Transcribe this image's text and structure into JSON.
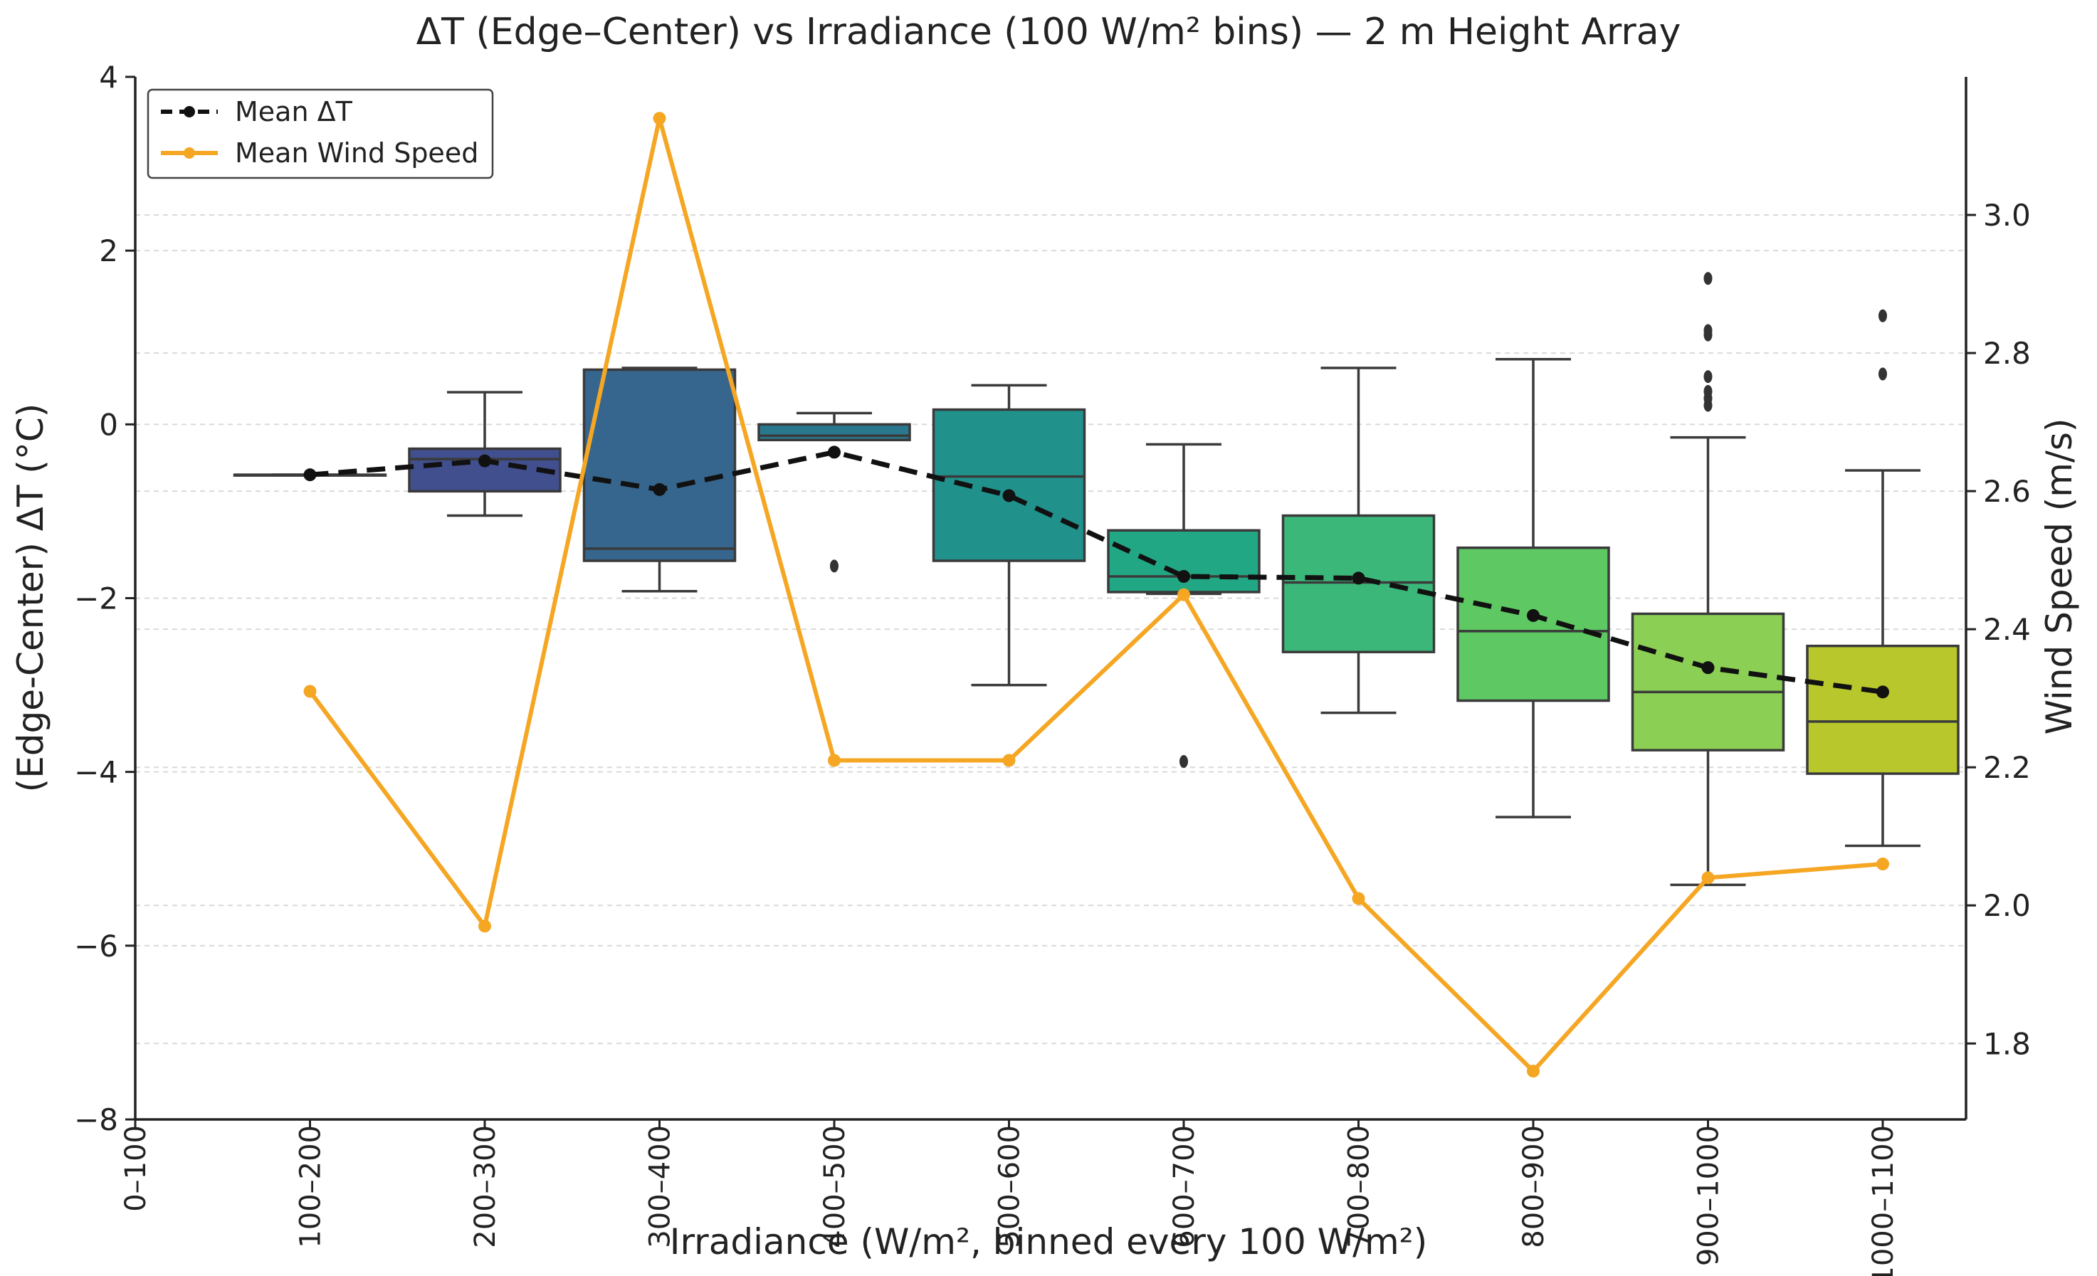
{
  "chart_data": {
    "type": "box",
    "title": "ΔT (Edge–Center) vs Irradiance (100 W/m² bins) — 2 m Height Array",
    "xlabel": "Irradiance (W/m², binned every 100 W/m²)",
    "ylabel": "(Edge-Center) ΔT (°C)",
    "y2label": "Wind Speed (m/s)",
    "ylim": [
      -8,
      4
    ],
    "y2lim": [
      1.69,
      3.2
    ],
    "yticks": [
      -8,
      -6,
      -4,
      -2,
      0,
      2,
      4
    ],
    "yticklabels": [
      "−8",
      "−6",
      "−4",
      "−2",
      "0",
      "2",
      "4"
    ],
    "y2ticks": [
      1.8,
      2.0,
      2.2,
      2.4,
      2.6,
      2.8,
      3.0
    ],
    "y2ticklabels": [
      "1.8",
      "2.0",
      "2.2",
      "2.4",
      "2.6",
      "2.8",
      "3.0"
    ],
    "categories": [
      "0–100",
      "100–200",
      "200–300",
      "300–400",
      "400–500",
      "500–600",
      "600–700",
      "700–800",
      "800–900",
      "900–1000",
      "1000–1100"
    ],
    "grid": "horizontal dotted",
    "legend_position": "top-left",
    "legend": [
      {
        "label": "Mean ΔT",
        "color": "#111111",
        "style": "dashed-line-with-dot"
      },
      {
        "label": "Mean Wind Speed",
        "color": "#f5a623",
        "style": "solid-line-with-dot"
      }
    ],
    "boxes": [
      null,
      {
        "q1": -0.58,
        "median": -0.58,
        "q3": -0.58,
        "whislo": -0.58,
        "whishi": -0.58,
        "fliers": [],
        "color": "#472c7a"
      },
      {
        "q1": -0.77,
        "median": -0.4,
        "q3": -0.28,
        "whislo": -1.05,
        "whishi": 0.37,
        "fliers": [],
        "color": "#424f8e"
      },
      {
        "q1": -1.57,
        "median": -1.43,
        "q3": 0.63,
        "whislo": -1.92,
        "whishi": 0.65,
        "fliers": [],
        "color": "#36658d"
      },
      {
        "q1": -0.18,
        "median": -0.13,
        "q3": 0.0,
        "whislo": -0.18,
        "whishi": 0.13,
        "fliers": [
          -1.63
        ],
        "color": "#2a788e"
      },
      {
        "q1": -1.57,
        "median": -0.6,
        "q3": 0.17,
        "whislo": -3.0,
        "whishi": 0.45,
        "fliers": [],
        "color": "#21918c"
      },
      {
        "q1": -1.93,
        "median": -1.75,
        "q3": -1.22,
        "whislo": -1.95,
        "whishi": -0.23,
        "fliers": [
          -3.88
        ],
        "color": "#22a784"
      },
      {
        "q1": -2.62,
        "median": -1.82,
        "q3": -1.05,
        "whislo": -3.32,
        "whishi": 0.65,
        "fliers": [],
        "color": "#3bb77a"
      },
      {
        "q1": -3.18,
        "median": -2.38,
        "q3": -1.42,
        "whislo": -4.52,
        "whishi": 0.75,
        "fliers": [],
        "color": "#5ec962"
      },
      {
        "q1": -3.75,
        "median": -3.08,
        "q3": -2.18,
        "whislo": -5.3,
        "whishi": -0.15,
        "fliers": [
          0.22,
          0.3,
          0.38,
          0.55,
          1.03,
          1.08,
          1.68
        ],
        "color": "#8bcf55"
      },
      {
        "q1": -4.02,
        "median": -3.42,
        "q3": -2.55,
        "whislo": -4.85,
        "whishi": -0.53,
        "fliers": [
          0.58,
          1.25
        ],
        "color": "#b8c82c"
      }
    ],
    "series": [
      {
        "name": "Mean ΔT",
        "axis": "left",
        "values": [
          null,
          -0.58,
          -0.42,
          -0.75,
          -0.32,
          -0.82,
          -1.75,
          -1.77,
          -2.2,
          -2.8,
          -3.08
        ]
      },
      {
        "name": "Mean Wind Speed",
        "axis": "right",
        "values": [
          null,
          2.31,
          1.97,
          3.14,
          2.21,
          2.21,
          2.45,
          2.01,
          1.76,
          2.04,
          2.06
        ]
      }
    ]
  }
}
